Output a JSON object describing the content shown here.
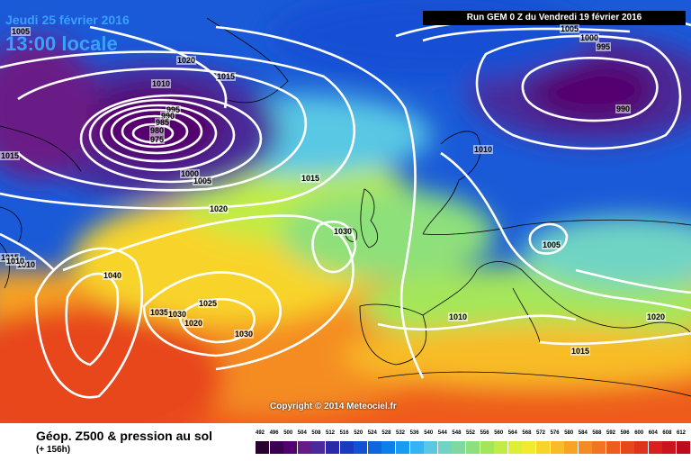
{
  "header": {
    "date": "Jeudi 25 février 2016",
    "time": "13:00 locale",
    "run": "Run GEM 0 Z du Vendredi 19 février 2016"
  },
  "copyright": "Copyright © 2014 Meteociel.fr",
  "footer": {
    "title": "Géop. Z500 & pression au sol",
    "subtitle": "(+ 156h)"
  },
  "scale": {
    "labels": [
      "492",
      "496",
      "500",
      "504",
      "508",
      "512",
      "516",
      "520",
      "524",
      "528",
      "532",
      "536",
      "540",
      "544",
      "548",
      "552",
      "556",
      "560",
      "564",
      "568",
      "572",
      "576",
      "580",
      "584",
      "588",
      "592",
      "596",
      "600",
      "604",
      "608",
      "612"
    ],
    "colors": [
      "#2a0030",
      "#3d0050",
      "#55006e",
      "#6a1a86",
      "#4a2a9a",
      "#2a2aa8",
      "#1a3ac0",
      "#1450d4",
      "#1066e0",
      "#0c80ea",
      "#189cf0",
      "#34b4f0",
      "#58c8e4",
      "#70d4c4",
      "#7ed8a0",
      "#8ee07a",
      "#a4e65a",
      "#c0ec44",
      "#dcee36",
      "#f2ea2e",
      "#f8d42a",
      "#f8bc26",
      "#f6a424",
      "#f48c22",
      "#f27420",
      "#ee5c1e",
      "#e8461c",
      "#e0321c",
      "#d8201c",
      "#cc141c",
      "#bc0c1c"
    ]
  },
  "isobars": [
    {
      "label": "1005"
    },
    {
      "label": "1020"
    },
    {
      "label": "1015"
    },
    {
      "label": "1010"
    },
    {
      "label": "995"
    },
    {
      "label": "990"
    },
    {
      "label": "985"
    },
    {
      "label": "980"
    },
    {
      "label": "975"
    },
    {
      "label": "1000"
    },
    {
      "label": "1005"
    },
    {
      "label": "1015"
    },
    {
      "label": "1015"
    },
    {
      "label": "1020"
    },
    {
      "label": "1030"
    },
    {
      "label": "1040"
    },
    {
      "label": "1035"
    },
    {
      "label": "1030"
    },
    {
      "label": "1025"
    },
    {
      "label": "1020"
    },
    {
      "label": "1030"
    },
    {
      "label": "1010"
    },
    {
      "label": "1015"
    },
    {
      "label": "1005"
    },
    {
      "label": "1000"
    },
    {
      "label": "995"
    },
    {
      "label": "990"
    },
    {
      "label": "1010"
    },
    {
      "label": "1005"
    },
    {
      "label": "1010"
    },
    {
      "label": "1020"
    },
    {
      "label": "1015"
    },
    {
      "label": "1010"
    }
  ]
}
